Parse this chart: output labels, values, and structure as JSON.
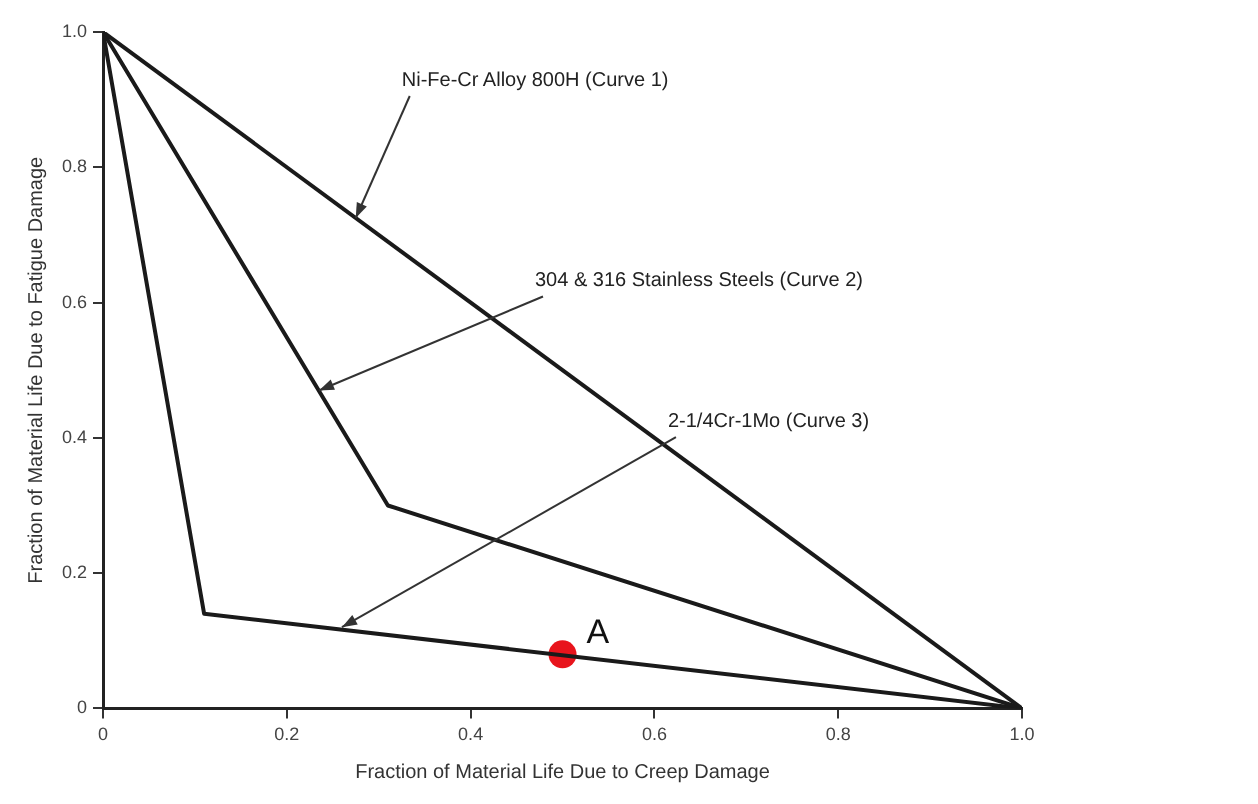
{
  "chart_data": {
    "type": "line",
    "xlabel": "Fraction of Material Life Due to Creep Damage",
    "ylabel": "Fraction of Material Life Due to Fatigue Damage",
    "xlim": [
      0,
      1
    ],
    "ylim": [
      0,
      1
    ],
    "xticks": [
      0,
      0.2,
      0.4,
      0.6,
      0.8,
      {
        "value": 1,
        "label": "1.0"
      }
    ],
    "yticks": [
      0,
      0.2,
      0.4,
      0.6,
      0.8,
      {
        "value": 1,
        "label": "1.0"
      }
    ],
    "grid": false,
    "legend": false,
    "marker": "none",
    "line_style": "solid",
    "series": [
      {
        "color": "#1a1a1a",
        "x": [
          0,
          1
        ],
        "values": [
          1,
          0
        ]
      },
      {
        "color": "#1a1a1a",
        "x": [
          0,
          0.31,
          1
        ],
        "values": [
          1,
          0.3,
          0
        ]
      },
      {
        "color": "#1a1a1a",
        "x": [
          0,
          0.11,
          1
        ],
        "values": [
          1,
          0.14,
          0
        ]
      },
      {
        "type": "scatter",
        "name": "A",
        "color": "#e8141c",
        "marker": "circle",
        "x": [
          0.5
        ],
        "values": [
          0.08
        ]
      }
    ],
    "annotations": [
      {
        "text": "Ni-Fe-Cr Alloy 800H (Curve 1)",
        "x": 0.275,
        "y": 0.725
      },
      {
        "text": "304 & 316 Stainless Steels (Curve 2)",
        "x": 0.235,
        "y": 0.47
      },
      {
        "text": "2-1/4Cr-1Mo (Curve 3)",
        "x": 0.26,
        "y": 0.12
      }
    ]
  }
}
